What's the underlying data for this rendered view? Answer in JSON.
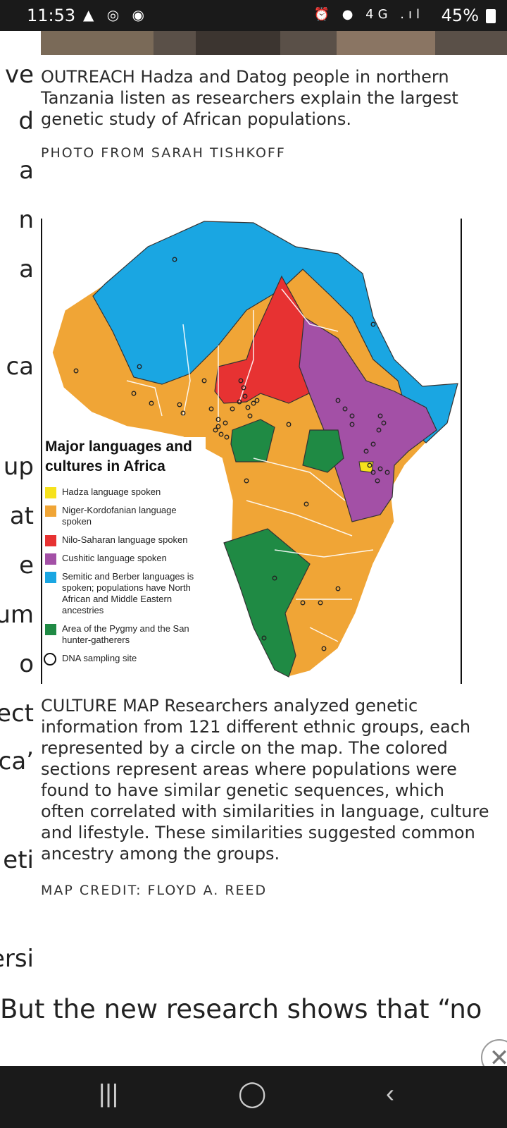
{
  "status_bar": {
    "time": "11:53",
    "left_icons": "▲ ◎ ◉",
    "right_icons": "⏰ ● 4G .ıl",
    "battery": "45%"
  },
  "left_fragments": [
    "ve",
    "d",
    "a",
    "n",
    "a",
    "ca",
    "up",
    "at",
    "e",
    "um",
    "o",
    "ect",
    "ca’",
    "eti",
    "ersi"
  ],
  "photo_caption": "OUTREACH Hadza and Datog people in northern Tanzania listen as researchers explain the largest genetic study of African populations.",
  "photo_credit": "PHOTO FROM SARAH TISHKOFF",
  "map": {
    "colors": {
      "hadza": "#f6e21c",
      "niger_kordofanian": "#f0a536",
      "nilo_saharan": "#e73232",
      "cushitic": "#a350a6",
      "semitic_berber": "#1aa6e2",
      "pygmy_san": "#1f8a44"
    },
    "legend_title_line1": "Major languages and",
    "legend_title_line2": "cultures in Africa",
    "legend": [
      {
        "color": "#f6e21c",
        "label": "Hadza language spoken"
      },
      {
        "color": "#f0a536",
        "label": "Niger-Kordofanian language spoken"
      },
      {
        "color": "#e73232",
        "label": "Nilo-Saharan language spoken"
      },
      {
        "color": "#a350a6",
        "label": "Cushitic language spoken"
      },
      {
        "color": "#1aa6e2",
        "label": "Semitic and Berber languages is spoken; populations have North African and Middle Eastern ancestries"
      },
      {
        "color": "#1f8a44",
        "label": "Area of the Pygmy and the San hunter-gatherers"
      }
    ],
    "legend_site_label": "DNA sampling site"
  },
  "map_caption": "CULTURE MAP Researchers analyzed genetic information from 121 different ethnic groups, each represented by a circle on the map. The colored sections represent areas where populations were found to have similar genetic sequences, which often correlated with similarities in language, culture and lifestyle. These similarities suggested common ancestry among the groups.",
  "map_credit": "MAP CREDIT: FLOYD A. REED",
  "body_line": "But the new research shows that “no",
  "nav": {
    "recents": "|||",
    "home": "◯",
    "back": "‹"
  }
}
